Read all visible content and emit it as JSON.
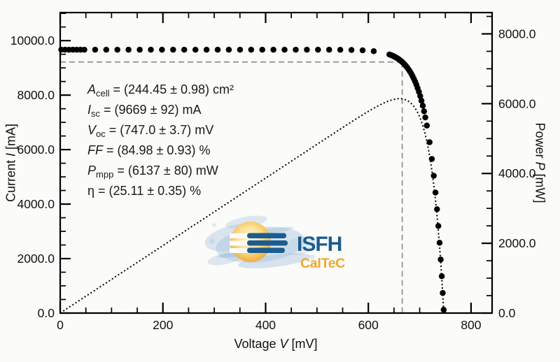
{
  "chart_data": {
    "type": "scatter",
    "title": "",
    "xlabel": {
      "pre": "Voltage ",
      "var": "V",
      "post": " [mV]"
    },
    "ylabel_left": {
      "pre": "Current ",
      "var": "I",
      "post": " [mA]"
    },
    "ylabel_right": {
      "pre": "Power ",
      "var": "P",
      "post": " [mW]"
    },
    "xlim": [
      0,
      841
    ],
    "ylim_left": [
      0,
      11030
    ],
    "ylim_right": [
      0,
      8610
    ],
    "x_ticks": {
      "major": [
        0,
        200,
        400,
        600,
        800
      ],
      "labels": [
        "0",
        "200",
        "400",
        "600",
        "800"
      ],
      "minor_step": 50
    },
    "y_ticks_left": {
      "major": [
        0,
        2000,
        4000,
        6000,
        8000,
        10000
      ],
      "labels": [
        "0.0",
        "2000.0",
        "4000.0",
        "6000.0",
        "8000.0",
        "10000.0"
      ],
      "minor_step": 500
    },
    "y_ticks_right": {
      "major": [
        0,
        2000,
        4000,
        6000,
        8000
      ],
      "labels": [
        "0.0",
        "2000.0",
        "4000.0",
        "6000.0",
        "8000.0"
      ],
      "minor_step": 500
    },
    "iv_curve": {
      "model": "I_ma = Isc*(1-exp((V-Voc)/a))",
      "isc_ma": 9669,
      "voc_mv": 747.0,
      "a_mv": 26.5,
      "sample_segments_mv": [
        [
          2,
          47,
          7.5
        ],
        [
          68,
          632,
          21.7
        ],
        [
          641,
          713,
          2.5
        ]
      ],
      "tail_sampling": {
        "start_mv": 714,
        "current_step_ma": 615,
        "min_current_ma": 100
      },
      "marker": "filled-circle",
      "marker_radius_px": 4.25
    },
    "power_curve": {
      "relation": "P_mw = V_mv * I_ma / 1000",
      "style": "dotted",
      "step_mv": 3.5
    },
    "mpp": {
      "v_mv": 666,
      "i_ma": 9215,
      "p_mw": 6137,
      "guide_line_color": "#999999",
      "guide_line_style": "dashed"
    }
  },
  "annotations": {
    "items": [
      {
        "sym": "A",
        "sub": "cell",
        "rest": " = (244.45 ± 0.98) cm²"
      },
      {
        "sym": "I",
        "sub": "sc",
        "rest": " = (9669 ± 92) mA"
      },
      {
        "sym": "V",
        "sub": "oc",
        "rest": " = (747.0 ± 3.7) mV"
      },
      {
        "sym": "FF",
        "sub": "",
        "rest": " = (84.98 ± 0.93) %"
      },
      {
        "sym": "P",
        "sub": "mpp",
        "rest": " = (6137 ± 80) mW"
      },
      {
        "sym": "η",
        "sub": "",
        "rest": " = (25.11 ± 0.35) %"
      }
    ]
  },
  "logo": {
    "name": "ISFH",
    "subname": "CalTeC",
    "colors": {
      "blue": "#1c5c90",
      "orange": "#efa82c",
      "splash": "#a9c4de"
    }
  },
  "colors": {
    "background": "#fbfbf9",
    "axis": "#000000",
    "text": "#1a1a1a",
    "marker": "#000000"
  }
}
